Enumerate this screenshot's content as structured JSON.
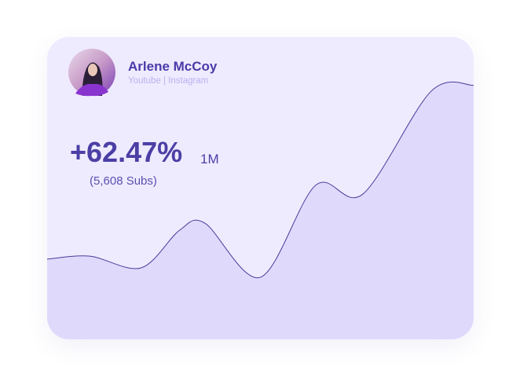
{
  "profile": {
    "name": "Arlene McCoy",
    "platforms": "Youtube | Instagram"
  },
  "stats": {
    "change": "+62.47%",
    "reach": "1M",
    "subs": "(5,608 Subs)"
  },
  "chart_data": {
    "type": "area",
    "x": [
      0,
      10,
      22,
      31,
      37,
      50,
      63,
      74,
      90,
      100
    ],
    "values": [
      26.5,
      27.5,
      23.6,
      36,
      38.4,
      20.5,
      51,
      48,
      82,
      84
    ],
    "xlim": [
      0,
      100
    ],
    "ylim": [
      0,
      100
    ],
    "color": "#dfdafc",
    "line_color": "#4a3d9a"
  }
}
